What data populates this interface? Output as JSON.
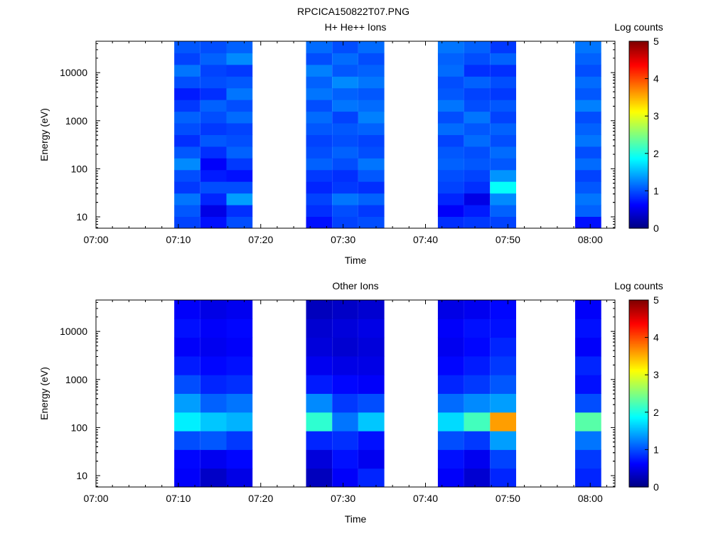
{
  "page_title": "RPCICA150822T07.PNG",
  "chart_data": [
    {
      "type": "heatmap",
      "title": "H+ He++ Ions",
      "xlabel": "Time",
      "ylabel": "Energy (eV)",
      "x_ticks": [
        "07:00",
        "07:10",
        "07:20",
        "07:30",
        "07:40",
        "07:50",
        "08:00"
      ],
      "xlim": [
        "07:00",
        "08:03"
      ],
      "y_scale": "log",
      "y_ticks": [
        "10",
        "100",
        "1000",
        "10000"
      ],
      "ylim": [
        5.8,
        45000
      ],
      "colorbar": {
        "label": "Log counts",
        "ticks": [
          "0",
          "1",
          "2",
          "3",
          "4",
          "5"
        ],
        "range": [
          0,
          5
        ],
        "colormap": "jet"
      },
      "time_blocks": [
        {
          "start": "07:09:30",
          "end": "07:12:40",
          "lowest_energy_eV": 5.8,
          "levels": [
            0.95,
            1.05,
            1.2,
            0.9,
            1.0,
            1.3,
            1.05,
            0.85,
            1.0,
            1.1,
            0.9,
            0.75,
            1.0,
            1.2,
            0.95,
            1.05
          ]
        },
        {
          "start": "07:12:40",
          "end": "07:15:50",
          "lowest_energy_eV": 5.8,
          "levels": [
            0.7,
            0.5,
            0.8,
            1.0,
            0.75,
            0.6,
            0.85,
            1.05,
            0.9,
            1.0,
            1.1,
            0.85,
            1.0,
            0.95,
            1.1,
            1.0
          ]
        },
        {
          "start": "07:15:50",
          "end": "07:19:00",
          "lowest_energy_eV": 5.8,
          "levels": [
            1.0,
            0.85,
            1.4,
            1.0,
            0.7,
            0.9,
            1.1,
            1.0,
            0.95,
            1.15,
            1.0,
            1.2,
            1.05,
            0.9,
            1.3,
            1.1
          ]
        },
        {
          "start": "07:25:30",
          "end": "07:28:40",
          "lowest_energy_eV": 5.8,
          "levels": [
            0.7,
            0.85,
            0.95,
            0.8,
            0.9,
            1.1,
            1.0,
            0.95,
            1.05,
            1.15,
            1.0,
            1.2,
            1.1,
            1.25,
            1.0,
            1.15
          ]
        },
        {
          "start": "07:28:40",
          "end": "07:31:50",
          "lowest_energy_eV": 5.8,
          "levels": [
            0.95,
            1.0,
            1.2,
            0.9,
            0.85,
            1.0,
            1.1,
            1.0,
            1.05,
            0.95,
            1.2,
            1.1,
            1.3,
            1.05,
            1.15,
            1.0
          ]
        },
        {
          "start": "07:31:50",
          "end": "07:35:00",
          "lowest_energy_eV": 5.8,
          "levels": [
            1.0,
            0.9,
            1.1,
            0.85,
            1.05,
            1.2,
            1.0,
            0.95,
            1.1,
            1.25,
            1.15,
            1.05,
            1.2,
            1.1,
            1.0,
            1.15
          ]
        },
        {
          "start": "07:41:30",
          "end": "07:44:40",
          "lowest_energy_eV": 5.8,
          "levels": [
            0.85,
            0.6,
            0.8,
            0.95,
            1.0,
            1.1,
            1.05,
            0.95,
            1.15,
            1.0,
            1.2,
            1.05,
            1.0,
            1.15,
            1.1,
            1.2
          ]
        },
        {
          "start": "07:44:40",
          "end": "07:47:50",
          "lowest_energy_eV": 5.8,
          "levels": [
            0.9,
            0.75,
            0.5,
            0.85,
            0.95,
            1.05,
            1.0,
            1.15,
            1.05,
            1.2,
            1.0,
            0.95,
            1.1,
            0.85,
            1.0,
            1.1
          ]
        },
        {
          "start": "07:47:50",
          "end": "07:51:00",
          "lowest_energy_eV": 5.8,
          "levels": [
            0.95,
            1.1,
            1.3,
            1.9,
            1.35,
            1.05,
            1.15,
            1.0,
            1.1,
            0.95,
            1.05,
            0.9,
            1.0,
            0.85,
            1.1,
            0.9
          ]
        },
        {
          "start": "07:58:10",
          "end": "08:01:20",
          "lowest_energy_eV": 5.8,
          "levels": [
            0.7,
            1.1,
            1.2,
            1.05,
            0.95,
            1.15,
            1.0,
            1.2,
            1.1,
            1.0,
            1.25,
            1.05,
            1.15,
            1.0,
            1.1,
            1.2
          ]
        }
      ]
    },
    {
      "type": "heatmap",
      "title": "Other Ions",
      "xlabel": "Time",
      "ylabel": "Energy (eV)",
      "x_ticks": [
        "07:00",
        "07:10",
        "07:20",
        "07:30",
        "07:40",
        "07:50",
        "08:00"
      ],
      "xlim": [
        "07:00",
        "08:03"
      ],
      "y_scale": "log",
      "y_ticks": [
        "10",
        "100",
        "1000",
        "10000"
      ],
      "ylim": [
        5.8,
        45000
      ],
      "colorbar": {
        "label": "Log counts",
        "ticks": [
          "0",
          "1",
          "2",
          "3",
          "4",
          "5"
        ],
        "range": [
          0,
          5
        ],
        "colormap": "jet"
      },
      "time_blocks": [
        {
          "start": "07:09:30",
          "end": "07:12:40",
          "lowest_energy_eV": 5.8,
          "levels": [
            0.6,
            0.65,
            1.0,
            1.8,
            1.4,
            1.0,
            0.75,
            0.6,
            0.7,
            0.6
          ]
        },
        {
          "start": "07:12:40",
          "end": "07:15:50",
          "lowest_energy_eV": 5.8,
          "levels": [
            0.35,
            0.55,
            1.05,
            1.6,
            1.1,
            0.8,
            0.65,
            0.55,
            0.6,
            0.5
          ]
        },
        {
          "start": "07:15:50",
          "end": "07:19:00",
          "lowest_energy_eV": 5.8,
          "levels": [
            0.5,
            0.65,
            0.9,
            1.5,
            1.2,
            0.85,
            0.7,
            0.6,
            0.65,
            0.55
          ]
        },
        {
          "start": "07:25:30",
          "end": "07:28:40",
          "lowest_energy_eV": 5.8,
          "levels": [
            0.3,
            0.45,
            0.8,
            2.1,
            1.3,
            0.75,
            0.55,
            0.45,
            0.4,
            0.3
          ]
        },
        {
          "start": "07:28:40",
          "end": "07:31:50",
          "lowest_energy_eV": 5.8,
          "levels": [
            0.6,
            0.7,
            0.85,
            1.2,
            0.9,
            0.65,
            0.5,
            0.4,
            0.45,
            0.35
          ]
        },
        {
          "start": "07:31:50",
          "end": "07:35:00",
          "lowest_energy_eV": 5.8,
          "levels": [
            0.8,
            0.55,
            0.7,
            1.6,
            1.0,
            0.6,
            0.5,
            0.45,
            0.5,
            0.4
          ]
        },
        {
          "start": "07:41:30",
          "end": "07:44:40",
          "lowest_energy_eV": 5.8,
          "levels": [
            0.6,
            0.7,
            1.0,
            1.7,
            1.15,
            0.8,
            0.65,
            0.55,
            0.6,
            0.5
          ]
        },
        {
          "start": "07:44:40",
          "end": "07:47:50",
          "lowest_energy_eV": 5.8,
          "levels": [
            0.4,
            0.55,
            0.9,
            2.2,
            1.3,
            0.9,
            0.75,
            0.65,
            0.7,
            0.55
          ]
        },
        {
          "start": "07:47:50",
          "end": "07:51:00",
          "lowest_energy_eV": 5.8,
          "levels": [
            0.8,
            0.95,
            1.4,
            3.6,
            1.4,
            1.05,
            0.9,
            0.8,
            0.7,
            0.65
          ]
        },
        {
          "start": "07:58:10",
          "end": "08:01:20",
          "lowest_energy_eV": 5.8,
          "levels": [
            0.8,
            0.9,
            1.2,
            2.3,
            1.0,
            0.7,
            0.8,
            0.6,
            0.7,
            0.6
          ]
        }
      ]
    }
  ]
}
